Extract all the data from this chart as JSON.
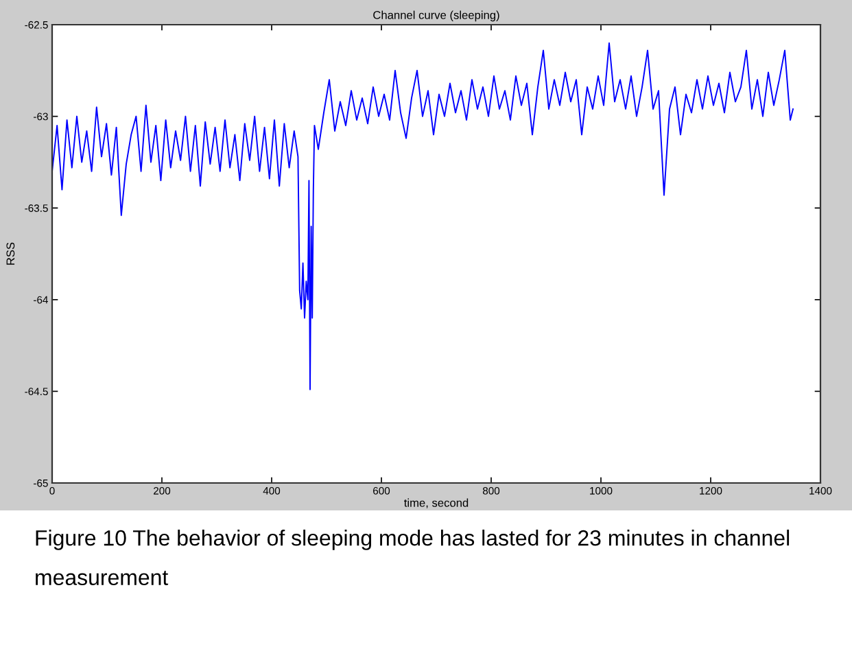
{
  "chart_data": {
    "type": "line",
    "title": "Channel curve (sleeping)",
    "xlabel": "time, second",
    "ylabel": "RSS",
    "annotations": [
      "Figure 10 The behavior of sleeping mode has lasted for 23 minutes in channel measurement"
    ],
    "xlim": [
      0,
      1400
    ],
    "xticks": [
      0,
      200,
      400,
      600,
      800,
      1000,
      1200,
      1400
    ],
    "ylim": [
      -65,
      -62.5
    ],
    "yticks": [
      -65,
      -64.5,
      -64,
      -63.5,
      -63,
      -62.5
    ],
    "line_style": "solid",
    "x": [
      0,
      9,
      18,
      27,
      36,
      45,
      54,
      63,
      72,
      81,
      90,
      99,
      108,
      117,
      126,
      135,
      144,
      153,
      162,
      171,
      180,
      189,
      198,
      207,
      216,
      225,
      234,
      243,
      252,
      261,
      270,
      279,
      288,
      297,
      306,
      315,
      324,
      333,
      342,
      351,
      360,
      369,
      378,
      387,
      396,
      405,
      414,
      423,
      432,
      441,
      448,
      451,
      454,
      457,
      460,
      463,
      466,
      468,
      470,
      472,
      474,
      476,
      478,
      485,
      495,
      505,
      515,
      525,
      535,
      545,
      555,
      565,
      575,
      585,
      595,
      605,
      615,
      625,
      635,
      645,
      655,
      665,
      675,
      685,
      695,
      705,
      715,
      725,
      735,
      745,
      755,
      765,
      775,
      785,
      795,
      805,
      815,
      825,
      835,
      845,
      855,
      865,
      875,
      885,
      895,
      905,
      915,
      925,
      935,
      945,
      955,
      965,
      975,
      985,
      995,
      1005,
      1015,
      1025,
      1035,
      1045,
      1055,
      1065,
      1075,
      1085,
      1095,
      1105,
      1115,
      1125,
      1135,
      1145,
      1155,
      1165,
      1175,
      1185,
      1195,
      1205,
      1215,
      1225,
      1235,
      1245,
      1255,
      1265,
      1275,
      1285,
      1295,
      1305,
      1315,
      1325,
      1335,
      1345,
      1350
    ],
    "series": [
      {
        "color": "#0000ff",
        "values": [
          -63.3,
          -63.05,
          -63.4,
          -63.02,
          -63.28,
          -63.0,
          -63.25,
          -63.08,
          -63.3,
          -62.95,
          -63.22,
          -63.04,
          -63.32,
          -63.06,
          -63.54,
          -63.26,
          -63.1,
          -63.0,
          -63.3,
          -62.94,
          -63.25,
          -63.05,
          -63.35,
          -63.02,
          -63.28,
          -63.08,
          -63.24,
          -63.0,
          -63.3,
          -63.05,
          -63.38,
          -63.03,
          -63.26,
          -63.06,
          -63.3,
          -63.02,
          -63.28,
          -63.1,
          -63.35,
          -63.04,
          -63.24,
          -63.0,
          -63.3,
          -63.06,
          -63.34,
          -63.02,
          -63.38,
          -63.04,
          -63.28,
          -63.08,
          -63.22,
          -63.95,
          -64.05,
          -63.8,
          -64.1,
          -63.9,
          -64.0,
          -63.35,
          -64.49,
          -63.6,
          -64.1,
          -63.4,
          -63.05,
          -63.18,
          -62.98,
          -62.8,
          -63.08,
          -62.92,
          -63.05,
          -62.86,
          -63.02,
          -62.9,
          -63.04,
          -62.84,
          -63.0,
          -62.88,
          -63.02,
          -62.75,
          -62.98,
          -63.12,
          -62.9,
          -62.75,
          -63.0,
          -62.86,
          -63.1,
          -62.88,
          -63.0,
          -62.82,
          -62.98,
          -62.86,
          -63.02,
          -62.8,
          -62.96,
          -62.84,
          -63.0,
          -62.78,
          -62.96,
          -62.86,
          -63.02,
          -62.78,
          -62.94,
          -62.82,
          -63.1,
          -62.84,
          -62.64,
          -62.96,
          -62.8,
          -62.94,
          -62.76,
          -62.92,
          -62.8,
          -63.1,
          -62.84,
          -62.96,
          -62.78,
          -62.94,
          -62.6,
          -62.92,
          -62.8,
          -62.96,
          -62.78,
          -63.0,
          -62.84,
          -62.64,
          -62.96,
          -62.86,
          -63.43,
          -62.96,
          -62.84,
          -63.1,
          -62.88,
          -62.98,
          -62.8,
          -62.96,
          -62.78,
          -62.94,
          -62.82,
          -62.98,
          -62.76,
          -62.92,
          -62.84,
          -62.64,
          -62.96,
          -62.8,
          -63.0,
          -62.76,
          -62.94,
          -62.8,
          -62.64,
          -63.02,
          -62.96
        ]
      }
    ]
  }
}
